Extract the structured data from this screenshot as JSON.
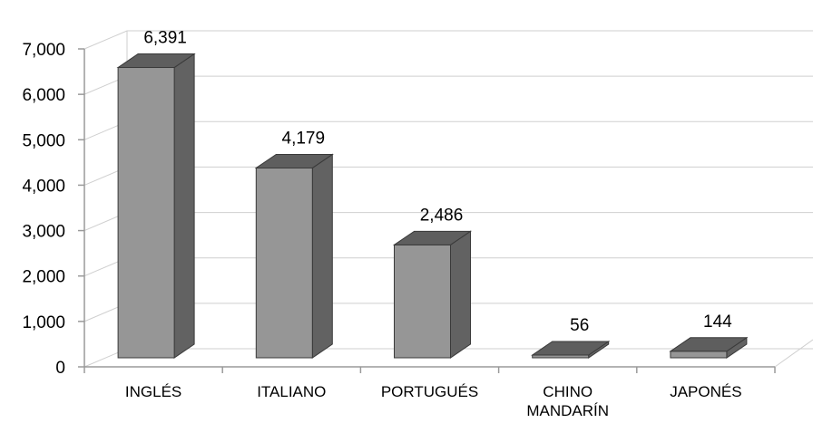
{
  "chart_data": {
    "type": "bar",
    "style": "3d-column",
    "categories": [
      "INGLÉS",
      "ITALIANO",
      "PORTUGUÉS",
      "CHINO MANDARÍN",
      "JAPONÉS"
    ],
    "category_lines": [
      [
        "INGLÉS"
      ],
      [
        "ITALIANO"
      ],
      [
        "PORTUGUÉS"
      ],
      [
        "CHINO",
        "MANDARÍN"
      ],
      [
        "JAPONÉS"
      ]
    ],
    "values": [
      6391,
      4179,
      2486,
      56,
      144
    ],
    "data_labels": [
      "6,391",
      "4,179",
      "2,486",
      "56",
      "144"
    ],
    "ylim": [
      0,
      7000
    ],
    "yticks": [
      0,
      1000,
      2000,
      3000,
      4000,
      5000,
      6000,
      7000
    ],
    "ytick_labels": [
      "0",
      "1,000",
      "2,000",
      "3,000",
      "4,000",
      "5,000",
      "6,000",
      "7,000"
    ],
    "grid": true,
    "legend": "none",
    "colors": {
      "bar_front": "#969696",
      "bar_top": "#5e5e5e",
      "bar_side": "#626262",
      "grid": "#cfcfcf"
    }
  }
}
